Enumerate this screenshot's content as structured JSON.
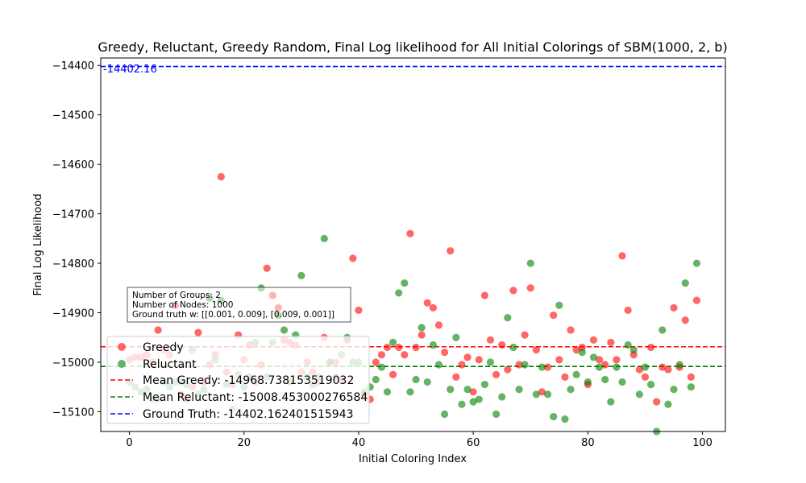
{
  "chart_data": {
    "type": "scatter",
    "title": "Greedy, Reluctant, Greedy Random, Final Log likelihood for All Initial Colorings of SBM(1000, 2, b)",
    "xlabel": "Initial Coloring Index",
    "ylabel": "Final Log Likelihood",
    "xlim": [
      -5,
      104
    ],
    "ylim": [
      -15140,
      -14385
    ],
    "xticks": [
      0,
      20,
      40,
      60,
      80,
      100
    ],
    "yticks": [
      -14400,
      -14500,
      -14600,
      -14700,
      -14800,
      -14900,
      -15000,
      -15100
    ],
    "ytick_labels": [
      "−14400",
      "−14500",
      "−14600",
      "−14700",
      "−14800",
      "−14900",
      "−15000",
      "−15100"
    ],
    "grid": false,
    "legend_position": "bottom-left",
    "series": [
      {
        "name": "Greedy",
        "color": "#ff0000",
        "x": [
          0,
          1,
          2,
          3,
          4,
          5,
          6,
          7,
          8,
          9,
          10,
          11,
          12,
          13,
          14,
          15,
          16,
          17,
          18,
          19,
          20,
          21,
          22,
          23,
          24,
          25,
          26,
          27,
          28,
          29,
          30,
          31,
          32,
          33,
          34,
          35,
          36,
          37,
          38,
          39,
          40,
          41,
          42,
          43,
          44,
          45,
          46,
          47,
          48,
          49,
          50,
          51,
          52,
          53,
          54,
          55,
          56,
          57,
          58,
          59,
          60,
          61,
          62,
          63,
          64,
          65,
          66,
          67,
          68,
          69,
          70,
          71,
          72,
          73,
          74,
          75,
          76,
          77,
          78,
          79,
          80,
          81,
          82,
          83,
          84,
          85,
          86,
          87,
          88,
          89,
          90,
          91,
          92,
          93,
          94,
          95,
          96,
          97,
          98,
          99
        ],
        "y": [
          -14995,
          -14990,
          -14990,
          -14985,
          -15000,
          -14935,
          -14975,
          -14985,
          -14885,
          -15065,
          -15075,
          -15050,
          -14940,
          -15040,
          -15005,
          -14985,
          -14625,
          -15020,
          -15045,
          -14945,
          -14995,
          -14965,
          -15040,
          -15005,
          -14810,
          -14865,
          -14890,
          -14955,
          -14960,
          -14965,
          -15020,
          -15000,
          -15020,
          -15040,
          -14950,
          -15000,
          -15000,
          -15035,
          -14955,
          -14790,
          -14895,
          -15065,
          -15075,
          -15000,
          -14985,
          -14970,
          -15025,
          -14970,
          -14985,
          -14740,
          -14970,
          -14945,
          -14880,
          -14890,
          -14925,
          -14980,
          -14775,
          -15030,
          -15005,
          -14990,
          -15060,
          -14995,
          -14865,
          -14955,
          -15025,
          -14965,
          -15015,
          -14855,
          -15005,
          -14945,
          -14850,
          -14975,
          -15060,
          -15010,
          -14905,
          -14995,
          -15030,
          -14935,
          -14975,
          -14970,
          -15045,
          -14955,
          -14995,
          -15005,
          -14960,
          -14995,
          -14785,
          -14895,
          -14985,
          -15015,
          -15030,
          -14970,
          -15080,
          -15010,
          -15015,
          -14890,
          -15010,
          -14915,
          -15030,
          -14875
        ]
      },
      {
        "name": "Reluctant",
        "color": "#008000",
        "x": [
          0,
          1,
          2,
          3,
          4,
          5,
          6,
          7,
          8,
          9,
          10,
          11,
          12,
          13,
          14,
          15,
          16,
          17,
          18,
          19,
          20,
          21,
          22,
          23,
          24,
          25,
          26,
          27,
          28,
          29,
          30,
          31,
          32,
          33,
          34,
          35,
          36,
          37,
          38,
          39,
          40,
          41,
          42,
          43,
          44,
          45,
          46,
          47,
          48,
          49,
          50,
          51,
          52,
          53,
          54,
          55,
          56,
          57,
          58,
          59,
          60,
          61,
          62,
          63,
          64,
          65,
          66,
          67,
          68,
          69,
          70,
          71,
          72,
          73,
          74,
          75,
          76,
          77,
          78,
          79,
          80,
          81,
          82,
          83,
          84,
          85,
          86,
          87,
          88,
          89,
          90,
          91,
          92,
          93,
          94,
          95,
          96,
          97,
          98,
          99
        ],
        "y": [
          -15040,
          -15050,
          -15060,
          -15055,
          -15075,
          -15075,
          -15040,
          -15050,
          -15040,
          -15040,
          -15045,
          -14975,
          -15065,
          -15055,
          -14870,
          -14995,
          -14875,
          -15045,
          -15095,
          -15025,
          -15050,
          -15030,
          -14960,
          -14850,
          -15030,
          -14960,
          -14905,
          -14935,
          -15040,
          -14945,
          -14825,
          -15030,
          -15045,
          -15030,
          -14750,
          -15000,
          -15030,
          -14985,
          -14950,
          -15000,
          -15000,
          -15060,
          -15050,
          -15035,
          -15010,
          -15060,
          -14960,
          -14860,
          -14840,
          -15060,
          -15035,
          -14930,
          -15040,
          -14965,
          -15005,
          -15105,
          -15055,
          -14950,
          -15085,
          -15055,
          -15080,
          -15075,
          -15045,
          -15000,
          -15105,
          -15070,
          -14910,
          -14970,
          -15055,
          -15005,
          -14800,
          -15065,
          -15010,
          -15065,
          -15110,
          -14885,
          -15115,
          -15055,
          -15025,
          -14980,
          -15040,
          -14990,
          -15010,
          -15035,
          -15080,
          -15010,
          -15040,
          -14965,
          -14975,
          -15065,
          -15010,
          -15045,
          -15140,
          -14935,
          -15085,
          -15055,
          -15005,
          -14840,
          -15050,
          -14800
        ]
      }
    ],
    "reference_lines": [
      {
        "name": "Mean Greedy",
        "label": "Mean Greedy: -14968.738153519032",
        "y": -14968.738153519032,
        "color": "#ff0000",
        "dash": "dashed"
      },
      {
        "name": "Mean Reluctant",
        "label": "Mean Reluctant: -15008.453000276584",
        "y": -15008.453000276584,
        "color": "#008000",
        "dash": "dashed"
      },
      {
        "name": "Ground Truth",
        "label": "Ground Truth: -14402.162401515943",
        "y": -14402.162401515943,
        "color": "#0000ff",
        "dash": "dashed"
      }
    ],
    "annotation_ground_truth": "-14402.16",
    "info_box": [
      "Number of Groups: 2",
      "Number of Nodes: 1000",
      "Ground truth w: [[0.001, 0.009], [0.009, 0.001]]"
    ]
  }
}
